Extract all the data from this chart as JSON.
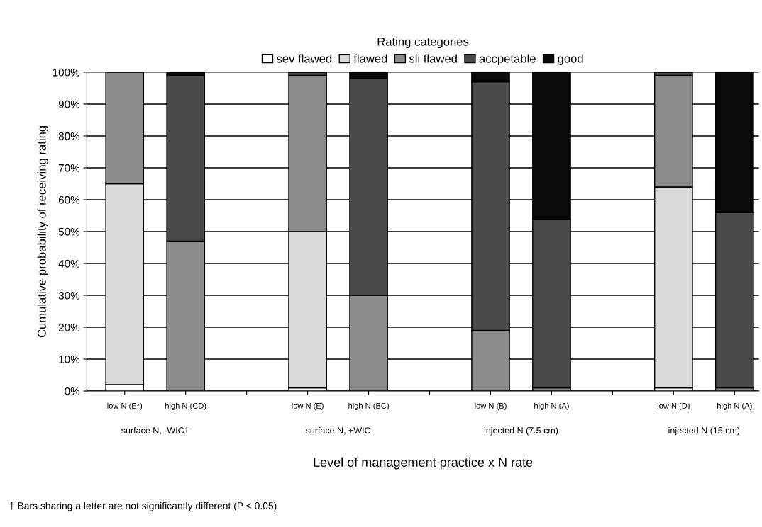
{
  "chart_data": {
    "type": "bar",
    "stacked": true,
    "legend_title": "Rating categories",
    "xlabel": "Level of management practice x N rate",
    "ylabel": "Cumulative probability of receiving rating",
    "categories": [
      "low N (E*)",
      "high N (CD)",
      null,
      "low N (E)",
      "high N (BC)",
      null,
      "low N (B)",
      "high N (A)",
      null,
      "low N (D)",
      "high N (A)"
    ],
    "series": [
      {
        "name": "sev flawed",
        "color": "#ffffff",
        "values": [
          2,
          0,
          null,
          1,
          0,
          null,
          0,
          0,
          null,
          1,
          0
        ]
      },
      {
        "name": "flawed",
        "color": "#d9d9d9",
        "values": [
          63,
          0,
          null,
          49,
          0,
          null,
          0,
          0,
          null,
          63,
          0
        ]
      },
      {
        "name": "sli flawed",
        "color": "#8c8c8c",
        "values": [
          35,
          47,
          null,
          49,
          30,
          null,
          19,
          1,
          null,
          35,
          1
        ]
      },
      {
        "name": "accpetable",
        "color": "#4a4a4a",
        "values": [
          0,
          52,
          null,
          1,
          68,
          null,
          78,
          53,
          null,
          1,
          55
        ]
      },
      {
        "name": "good",
        "color": "#0a0a0a",
        "values": [
          0,
          1,
          null,
          0,
          2,
          null,
          3,
          46,
          null,
          0,
          44
        ]
      }
    ],
    "ylim": [
      0,
      100
    ],
    "yticks": [
      {
        "value": 0,
        "label": "0%"
      },
      {
        "value": 10,
        "label": "10%"
      },
      {
        "value": 20,
        "label": "20%"
      },
      {
        "value": 30,
        "label": "30%"
      },
      {
        "value": 40,
        "label": "40%"
      },
      {
        "value": 50,
        "label": "50%"
      },
      {
        "value": 60,
        "label": "60%"
      },
      {
        "value": 70,
        "label": "70%"
      },
      {
        "value": 80,
        "label": "80%"
      },
      {
        "value": 90,
        "label": "90%"
      },
      {
        "value": 100,
        "label": "100%"
      }
    ],
    "grid": "y",
    "legend": "top",
    "annotations": [
      "surface N, -WIC†",
      "surface N, +WIC",
      "injected N (7.5 cm)",
      "injected N (15 cm)",
      "† Bars sharing a letter are not significantly different (P < 0.05)"
    ]
  }
}
